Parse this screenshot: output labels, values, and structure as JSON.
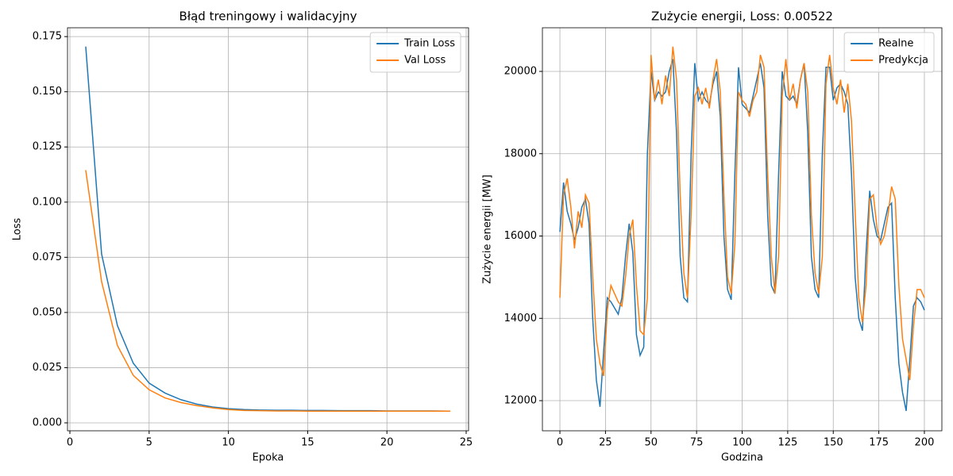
{
  "chart_data": [
    {
      "type": "line",
      "title": "Błąd treningowy i walidacyjny",
      "xlabel": "Epoka",
      "ylabel": "Loss",
      "x": [
        1,
        2,
        3,
        4,
        5,
        6,
        7,
        8,
        9,
        10,
        11,
        12,
        13,
        14,
        15,
        16,
        17,
        18,
        19,
        20,
        21,
        22,
        23,
        24
      ],
      "series": [
        {
          "name": "Train Loss",
          "color": "#1f77b4",
          "values": [
            0.1705,
            0.0765,
            0.044,
            0.027,
            0.018,
            0.0135,
            0.0105,
            0.0085,
            0.0072,
            0.0064,
            0.006,
            0.0058,
            0.0057,
            0.0057,
            0.0056,
            0.0056,
            0.0055,
            0.0055,
            0.0055,
            0.0054,
            0.0054,
            0.0054,
            0.0054,
            0.0053
          ]
        },
        {
          "name": "Val Loss",
          "color": "#ff7f0e",
          "values": [
            0.1145,
            0.064,
            0.035,
            0.0215,
            0.015,
            0.0113,
            0.0092,
            0.0078,
            0.0068,
            0.006,
            0.0056,
            0.0055,
            0.0054,
            0.0054,
            0.0053,
            0.0053,
            0.0053,
            0.0053,
            0.0053,
            0.0053,
            0.0053,
            0.0053,
            0.0053,
            0.0053
          ]
        }
      ],
      "xlim": [
        -0.15,
        25.15
      ],
      "ylim": [
        -0.0036,
        0.179
      ],
      "xticks": [
        0,
        5,
        10,
        15,
        20,
        25
      ],
      "yticks": [
        {
          "value": 0,
          "label": "0.000"
        },
        {
          "value": 0.025,
          "label": "0.025"
        },
        {
          "value": 0.05,
          "label": "0.050"
        },
        {
          "value": 0.075,
          "label": "0.075"
        },
        {
          "value": 0.1,
          "label": "0.100"
        },
        {
          "value": 0.125,
          "label": "0.125"
        },
        {
          "value": 0.15,
          "label": "0.150"
        },
        {
          "value": 0.175,
          "label": "0.175"
        }
      ],
      "grid": true,
      "legend": "upper right"
    },
    {
      "type": "line",
      "title": "Zużycie energii, Loss: 0.00522",
      "xlabel": "Godzina",
      "ylabel": "Zużycie energii [MW]",
      "x": [
        0,
        2,
        4,
        6,
        8,
        10,
        12,
        14,
        16,
        18,
        20,
        22,
        24,
        26,
        28,
        30,
        32,
        34,
        36,
        38,
        40,
        42,
        44,
        46,
        48,
        50,
        52,
        54,
        56,
        58,
        60,
        62,
        64,
        66,
        68,
        70,
        72,
        74,
        76,
        78,
        80,
        82,
        84,
        86,
        88,
        90,
        92,
        94,
        96,
        98,
        100,
        102,
        104,
        106,
        108,
        110,
        112,
        114,
        116,
        118,
        120,
        122,
        124,
        126,
        128,
        130,
        132,
        134,
        136,
        138,
        140,
        142,
        144,
        146,
        148,
        150,
        152,
        154,
        156,
        158,
        160,
        162,
        164,
        166,
        168,
        170,
        172,
        174,
        176,
        178,
        180,
        182,
        184,
        186,
        188,
        190,
        192,
        194,
        196,
        198,
        200
      ],
      "series": [
        {
          "name": "Realne",
          "color": "#1f77b4",
          "values": [
            16100,
            17300,
            16600,
            16300,
            15900,
            16200,
            16700,
            16900,
            16300,
            14000,
            12500,
            11850,
            13200,
            14500,
            14400,
            14250,
            14100,
            14500,
            15500,
            16300,
            15600,
            13600,
            13100,
            13300,
            18000,
            20000,
            19300,
            19500,
            19400,
            19500,
            20000,
            20300,
            18500,
            15500,
            14500,
            14400,
            18000,
            20200,
            19300,
            19500,
            19300,
            19200,
            19700,
            20000,
            18900,
            16000,
            14700,
            14450,
            17500,
            20100,
            19200,
            19100,
            19000,
            19400,
            19800,
            20200,
            19600,
            16500,
            14800,
            14600,
            17500,
            20000,
            19400,
            19300,
            19400,
            19200,
            19800,
            20200,
            18500,
            15500,
            14700,
            14500,
            18000,
            20100,
            20100,
            19300,
            19600,
            19700,
            19500,
            19200,
            17500,
            15000,
            14000,
            13700,
            15600,
            17100,
            16400,
            16000,
            15900,
            16300,
            16700,
            16800,
            14500,
            12900,
            12200,
            11750,
            13000,
            14300,
            14500,
            14400,
            14200
          ]
        },
        {
          "name": "Predykcja",
          "color": "#ff7f0e",
          "values": [
            14500,
            17000,
            17400,
            16700,
            15700,
            16600,
            16200,
            17000,
            16800,
            15000,
            13500,
            12900,
            12600,
            14200,
            14800,
            14600,
            14400,
            14300,
            15000,
            16000,
            16400,
            14800,
            13700,
            13600,
            14500,
            20400,
            19300,
            19800,
            19200,
            19900,
            19400,
            20600,
            19800,
            17000,
            15100,
            14500,
            16500,
            19400,
            19600,
            19200,
            19600,
            19100,
            19800,
            20300,
            19500,
            17000,
            15000,
            14600,
            15800,
            19500,
            19300,
            19200,
            18900,
            19300,
            19500,
            20400,
            20100,
            17500,
            15500,
            14600,
            15500,
            19400,
            20300,
            19300,
            19700,
            19100,
            19800,
            20200,
            19500,
            16500,
            15100,
            14600,
            15500,
            19700,
            20400,
            19600,
            19200,
            19800,
            19000,
            19700,
            18800,
            16600,
            14500,
            13900,
            14800,
            16900,
            17000,
            16200,
            15800,
            16000,
            16500,
            17200,
            16900,
            14800,
            13500,
            13000,
            12500,
            13800,
            14700,
            14700,
            14500
          ]
        }
      ],
      "xlim": [
        -9.6,
        209.6
      ],
      "ylim": [
        11268,
        21060
      ],
      "xticks": [
        0,
        25,
        50,
        75,
        100,
        125,
        150,
        175,
        200
      ],
      "yticks": [
        12000,
        14000,
        16000,
        18000,
        20000
      ],
      "grid": true,
      "legend": "upper right"
    }
  ]
}
